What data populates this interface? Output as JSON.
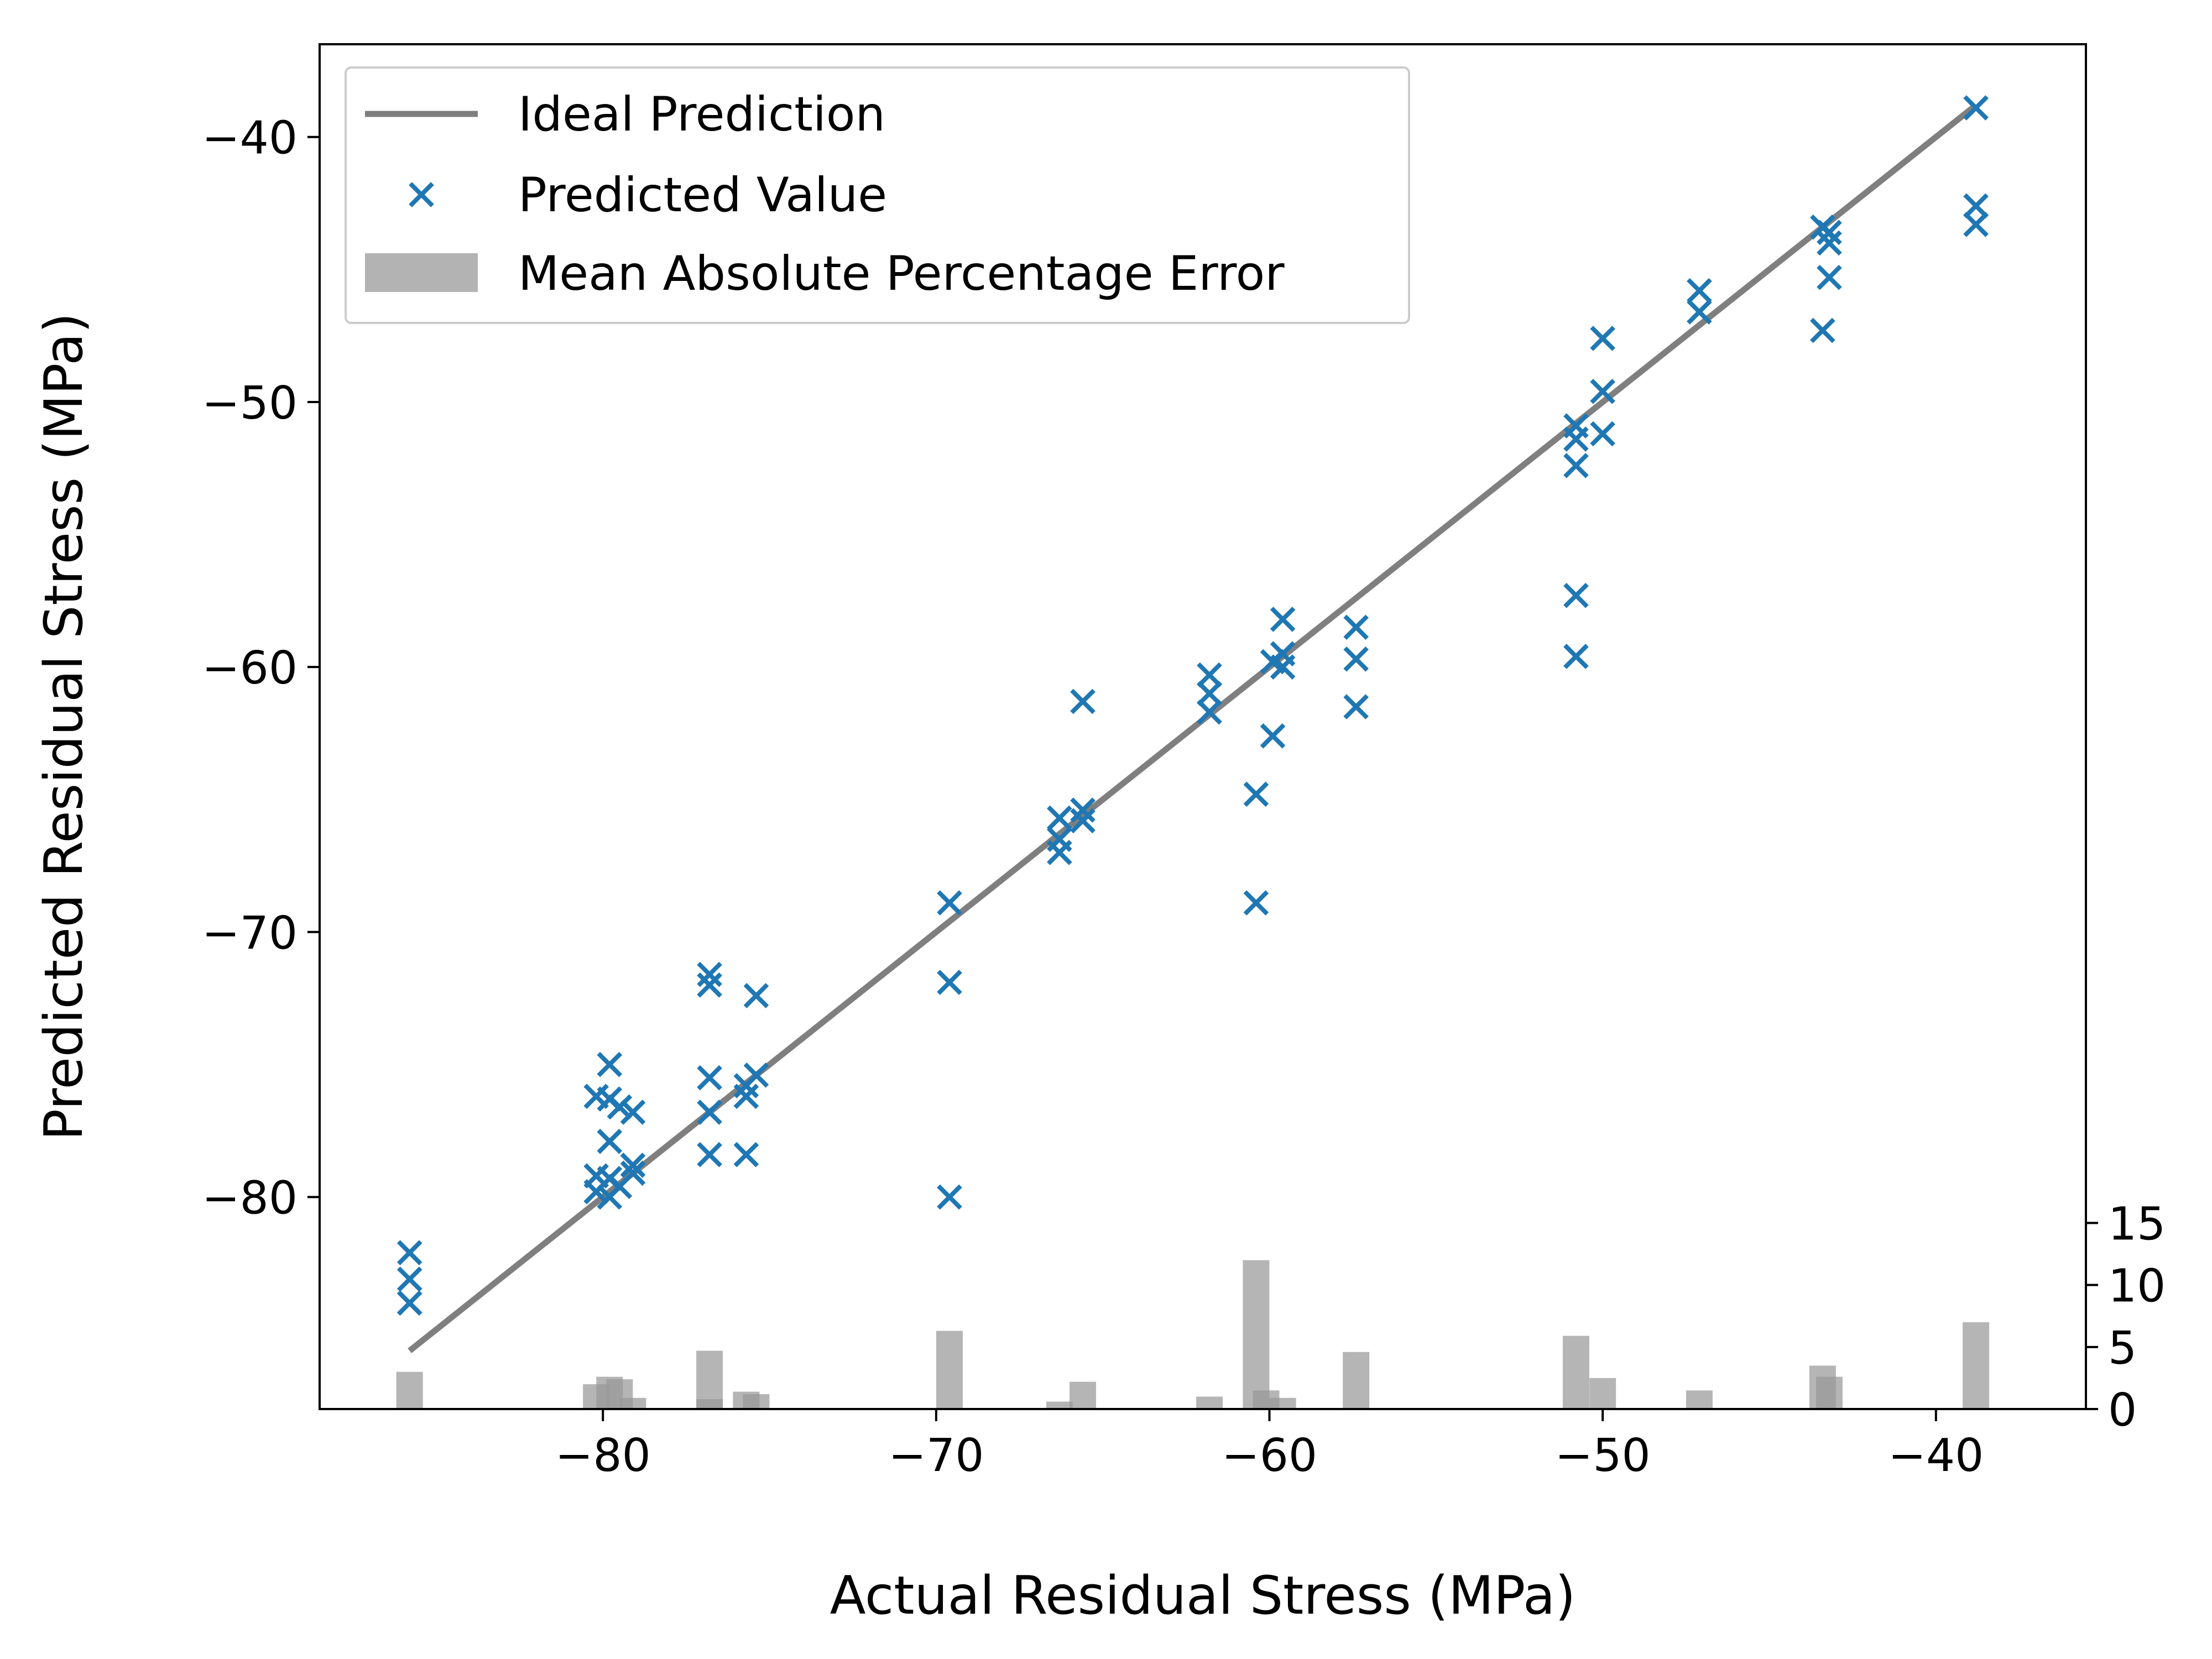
{
  "chart_data": {
    "type": "scatter",
    "xlabel": "Actual Residual Stress (MPa)",
    "ylabel": "Predicted Residual Stress (MPa)",
    "xlim": [
      -88.5,
      -35.5
    ],
    "ylim": [
      -88.0,
      -36.5
    ],
    "xticks": [
      -80,
      -70,
      -60,
      -50,
      -40
    ],
    "yticks": [
      -80,
      -70,
      -60,
      -50,
      -40
    ],
    "secondary_y": {
      "label": "",
      "ylim": [
        0,
        110
      ],
      "ticks": [
        0,
        5,
        10,
        15
      ]
    },
    "grid": false,
    "legend_position": "top-left",
    "legend": [
      "Ideal Prediction",
      "Predicted Value",
      "Mean Absolute Percentage Error"
    ],
    "series": [
      {
        "name": "Ideal Prediction",
        "kind": "line",
        "color": "#7f7f7f",
        "x": [
          -85.8,
          -38.9
        ],
        "y": [
          -85.8,
          -38.9
        ]
      },
      {
        "name": "Predicted Value",
        "kind": "scatter",
        "marker": "x",
        "color": "#1f77b4",
        "x": [
          -85.8,
          -85.8,
          -85.8,
          -85.8,
          -80.2,
          -80.2,
          -80.2,
          -79.8,
          -79.8,
          -79.8,
          -79.8,
          -79.8,
          -79.5,
          -79.5,
          -79.1,
          -79.1,
          -79.1,
          -76.8,
          -76.8,
          -76.8,
          -76.8,
          -76.8,
          -75.7,
          -75.7,
          -75.7,
          -75.4,
          -75.4,
          -69.6,
          -69.6,
          -69.6,
          -66.3,
          -66.3,
          -66.3,
          -65.6,
          -65.6,
          -65.6,
          -61.8,
          -61.8,
          -61.8,
          -60.4,
          -60.4,
          -59.9,
          -59.9,
          -59.6,
          -59.6,
          -59.6,
          -57.4,
          -57.4,
          -57.4,
          -50.8,
          -50.8,
          -50.8,
          -50.8,
          -50.8,
          -50.0,
          -50.0,
          -50.0,
          -47.1,
          -47.1,
          -43.4,
          -43.2,
          -43.2,
          -43.2,
          -43.4,
          -38.8,
          -38.8,
          -38.8
        ],
        "y": [
          -82.1,
          -83.1,
          -84.0,
          -84.0,
          -76.2,
          -79.2,
          -79.8,
          -75.0,
          -76.3,
          -77.9,
          -79.3,
          -80.0,
          -76.6,
          -79.6,
          -76.8,
          -78.8,
          -79.1,
          -71.6,
          -72.0,
          -75.5,
          -76.8,
          -78.4,
          -75.8,
          -76.2,
          -78.4,
          -72.4,
          -75.4,
          -68.9,
          -71.9,
          -80.0,
          -65.7,
          -66.5,
          -67.0,
          -65.4,
          -65.8,
          -61.3,
          -60.3,
          -61.0,
          -61.7,
          -64.8,
          -68.9,
          -59.8,
          -62.6,
          -58.2,
          -59.5,
          -60.0,
          -58.5,
          -59.7,
          -61.5,
          -50.9,
          -51.4,
          -52.4,
          -57.3,
          -59.6,
          -47.6,
          -49.6,
          -51.2,
          -45.8,
          -46.6,
          -43.4,
          -43.6,
          -44.0,
          -45.3,
          -47.3,
          -38.9,
          -42.6,
          -43.3
        ]
      },
      {
        "name": "Mean Absolute Percentage Error",
        "kind": "bar",
        "axis": "secondary",
        "color": "#999999",
        "x": [
          -85.8,
          -80.2,
          -79.8,
          -79.5,
          -79.1,
          -76.8,
          -76.8,
          -75.7,
          -75.4,
          -69.6,
          -66.3,
          -65.6,
          -61.8,
          -60.4,
          -60.1,
          -59.6,
          -57.4,
          -50.8,
          -50.0,
          -47.1,
          -43.4,
          -43.2,
          -38.8
        ],
        "values": [
          3.0,
          2.0,
          2.6,
          2.4,
          0.9,
          4.7,
          0.8,
          1.4,
          1.2,
          6.3,
          0.6,
          2.2,
          1.0,
          12.0,
          1.5,
          0.9,
          4.6,
          5.9,
          2.5,
          1.5,
          3.5,
          2.6,
          7.0
        ]
      }
    ]
  }
}
